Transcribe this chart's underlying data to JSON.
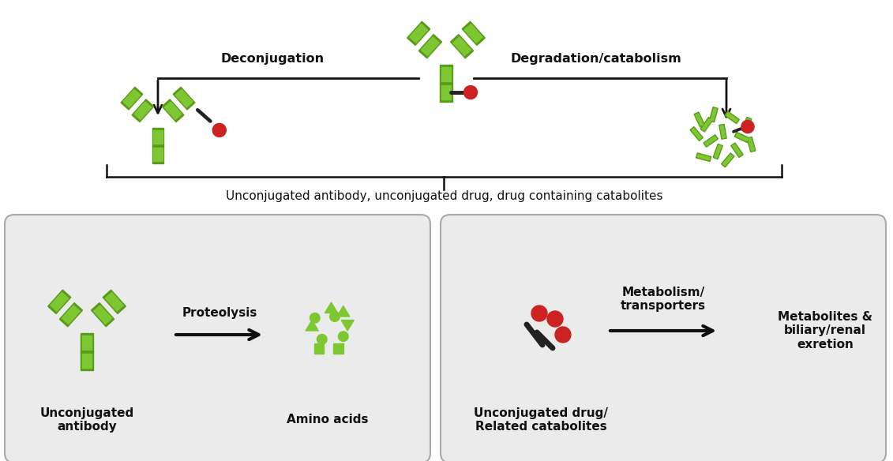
{
  "bg_color": "#ffffff",
  "gc": "#7dc832",
  "gd": "#5a9a1a",
  "rc": "#cc2222",
  "ac": "#111111",
  "tc": "#111111",
  "box_bg": "#ebebeb",
  "box_edge": "#aaaaaa",
  "label_deconj": "Deconjugation",
  "label_degrad": "Degradation/catabolism",
  "label_bottom": "Unconjugated antibody, unconjugated drug, drug containing catabolites",
  "label_proteolysis": "Proteolysis",
  "label_metabolism": "Metabolism/\ntransporters",
  "label_unconj_ab": "Unconjugated\nantibody",
  "label_amino": "Amino acids",
  "label_unconj_drug": "Unconjugated drug/\nRelated catabolites",
  "label_metabolites": "Metabolites &\nbiliary/renal\nexretion"
}
